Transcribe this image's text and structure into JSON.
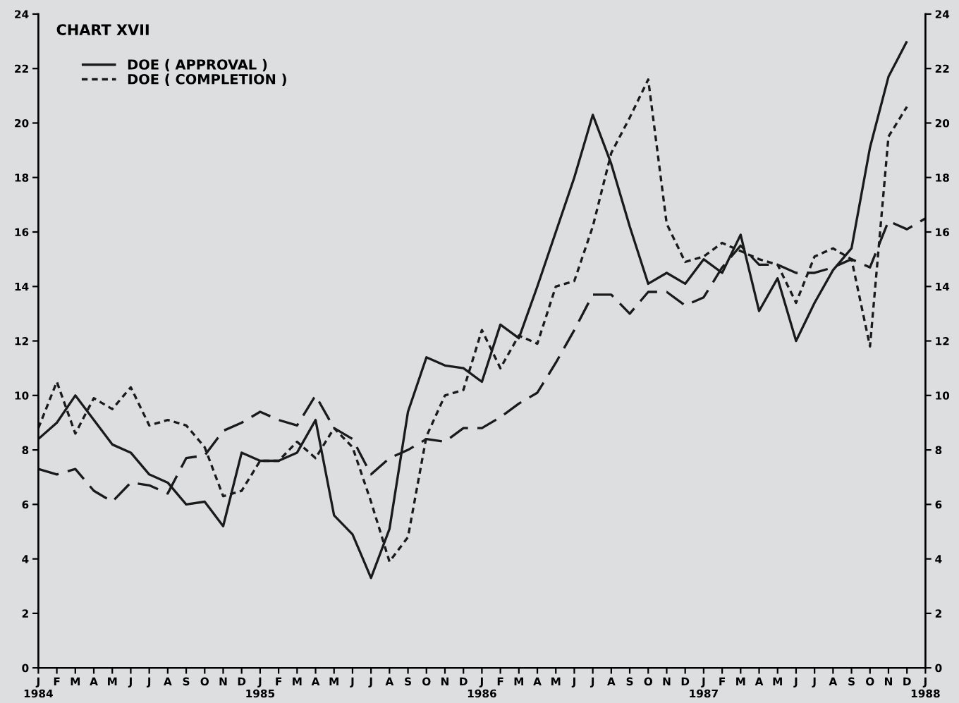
{
  "chart_data": {
    "type": "line",
    "title": "CHART XVII",
    "categories": [
      "J\n1984",
      "F",
      "M",
      "A",
      "M",
      "J",
      "J",
      "A",
      "S",
      "O",
      "N",
      "D",
      "J\n1985",
      "F",
      "M",
      "A",
      "M",
      "J",
      "J",
      "A",
      "S",
      "O",
      "N",
      "D",
      "J\n1986",
      "F",
      "M",
      "A",
      "M",
      "J",
      "J",
      "A",
      "S",
      "O",
      "N",
      "D",
      "J\n1987",
      "F",
      "M",
      "A",
      "M",
      "J",
      "J",
      "A",
      "S",
      "O",
      "N",
      "D",
      "J\n1988"
    ],
    "series": [
      {
        "name": "DOE ( APPROVAL )",
        "color": "#1a1a1a",
        "line_style": "solid",
        "values": [
          8.4,
          9.0,
          10.0,
          9.1,
          8.2,
          7.9,
          7.1,
          6.8,
          6.0,
          6.1,
          5.2,
          7.9,
          7.6,
          7.6,
          7.9,
          9.1,
          5.6,
          4.9,
          3.3,
          5.1,
          9.4,
          11.4,
          11.1,
          11.0,
          10.5,
          12.6,
          12.1,
          14.0,
          16.0,
          18.0,
          20.3,
          18.5,
          16.2,
          14.1,
          14.5,
          14.1,
          15.0,
          14.5,
          15.9,
          13.1,
          14.3,
          12.0,
          13.4,
          14.6,
          15.4,
          19.1,
          21.7,
          23.0,
          null
        ]
      },
      {
        "name": "DOE ( COMPLETION )",
        "color": "#1a1a1a",
        "line_style": "dotted",
        "values": [
          8.8,
          10.5,
          8.6,
          9.9,
          9.5,
          10.3,
          8.9,
          9.1,
          8.9,
          8.1,
          6.3,
          6.5,
          7.6,
          7.6,
          8.3,
          7.7,
          8.8,
          8.1,
          6.1,
          3.9,
          4.8,
          8.5,
          10.0,
          10.2,
          12.4,
          11.0,
          12.2,
          11.9,
          14.0,
          14.2,
          16.2,
          18.9,
          20.2,
          21.6,
          16.3,
          14.9,
          15.1,
          15.6,
          15.3,
          15.0,
          14.8,
          13.4,
          15.1,
          15.4,
          15.0,
          11.8,
          19.5,
          20.6,
          null
        ]
      },
      {
        "color": "#1a1a1a",
        "line_style": "dashed",
        "values": [
          7.3,
          7.1,
          7.3,
          6.5,
          6.1,
          6.8,
          6.7,
          6.4,
          7.7,
          7.8,
          8.7,
          9.0,
          9.4,
          9.1,
          8.9,
          10.0,
          8.8,
          8.4,
          7.1,
          7.7,
          8.0,
          8.4,
          8.3,
          8.8,
          8.8,
          9.2,
          9.7,
          10.1,
          11.2,
          12.4,
          13.7,
          13.7,
          13.0,
          13.8,
          13.8,
          13.3,
          13.6,
          14.7,
          15.5,
          14.8,
          14.8,
          14.5,
          14.5,
          14.7,
          15.0,
          14.7,
          16.4,
          16.1,
          16.5
        ]
      }
    ],
    "ylim": [
      0,
      24
    ],
    "yticks": [
      0,
      2,
      4,
      6,
      8,
      10,
      12,
      14,
      16,
      18,
      20,
      22,
      24
    ],
    "y2lim": [
      0,
      24
    ],
    "y2ticks": [
      0,
      2,
      4,
      6,
      8,
      10,
      12,
      14,
      16,
      18,
      20,
      22,
      24
    ],
    "grid": false,
    "legend": "top left",
    "marker": "none"
  }
}
